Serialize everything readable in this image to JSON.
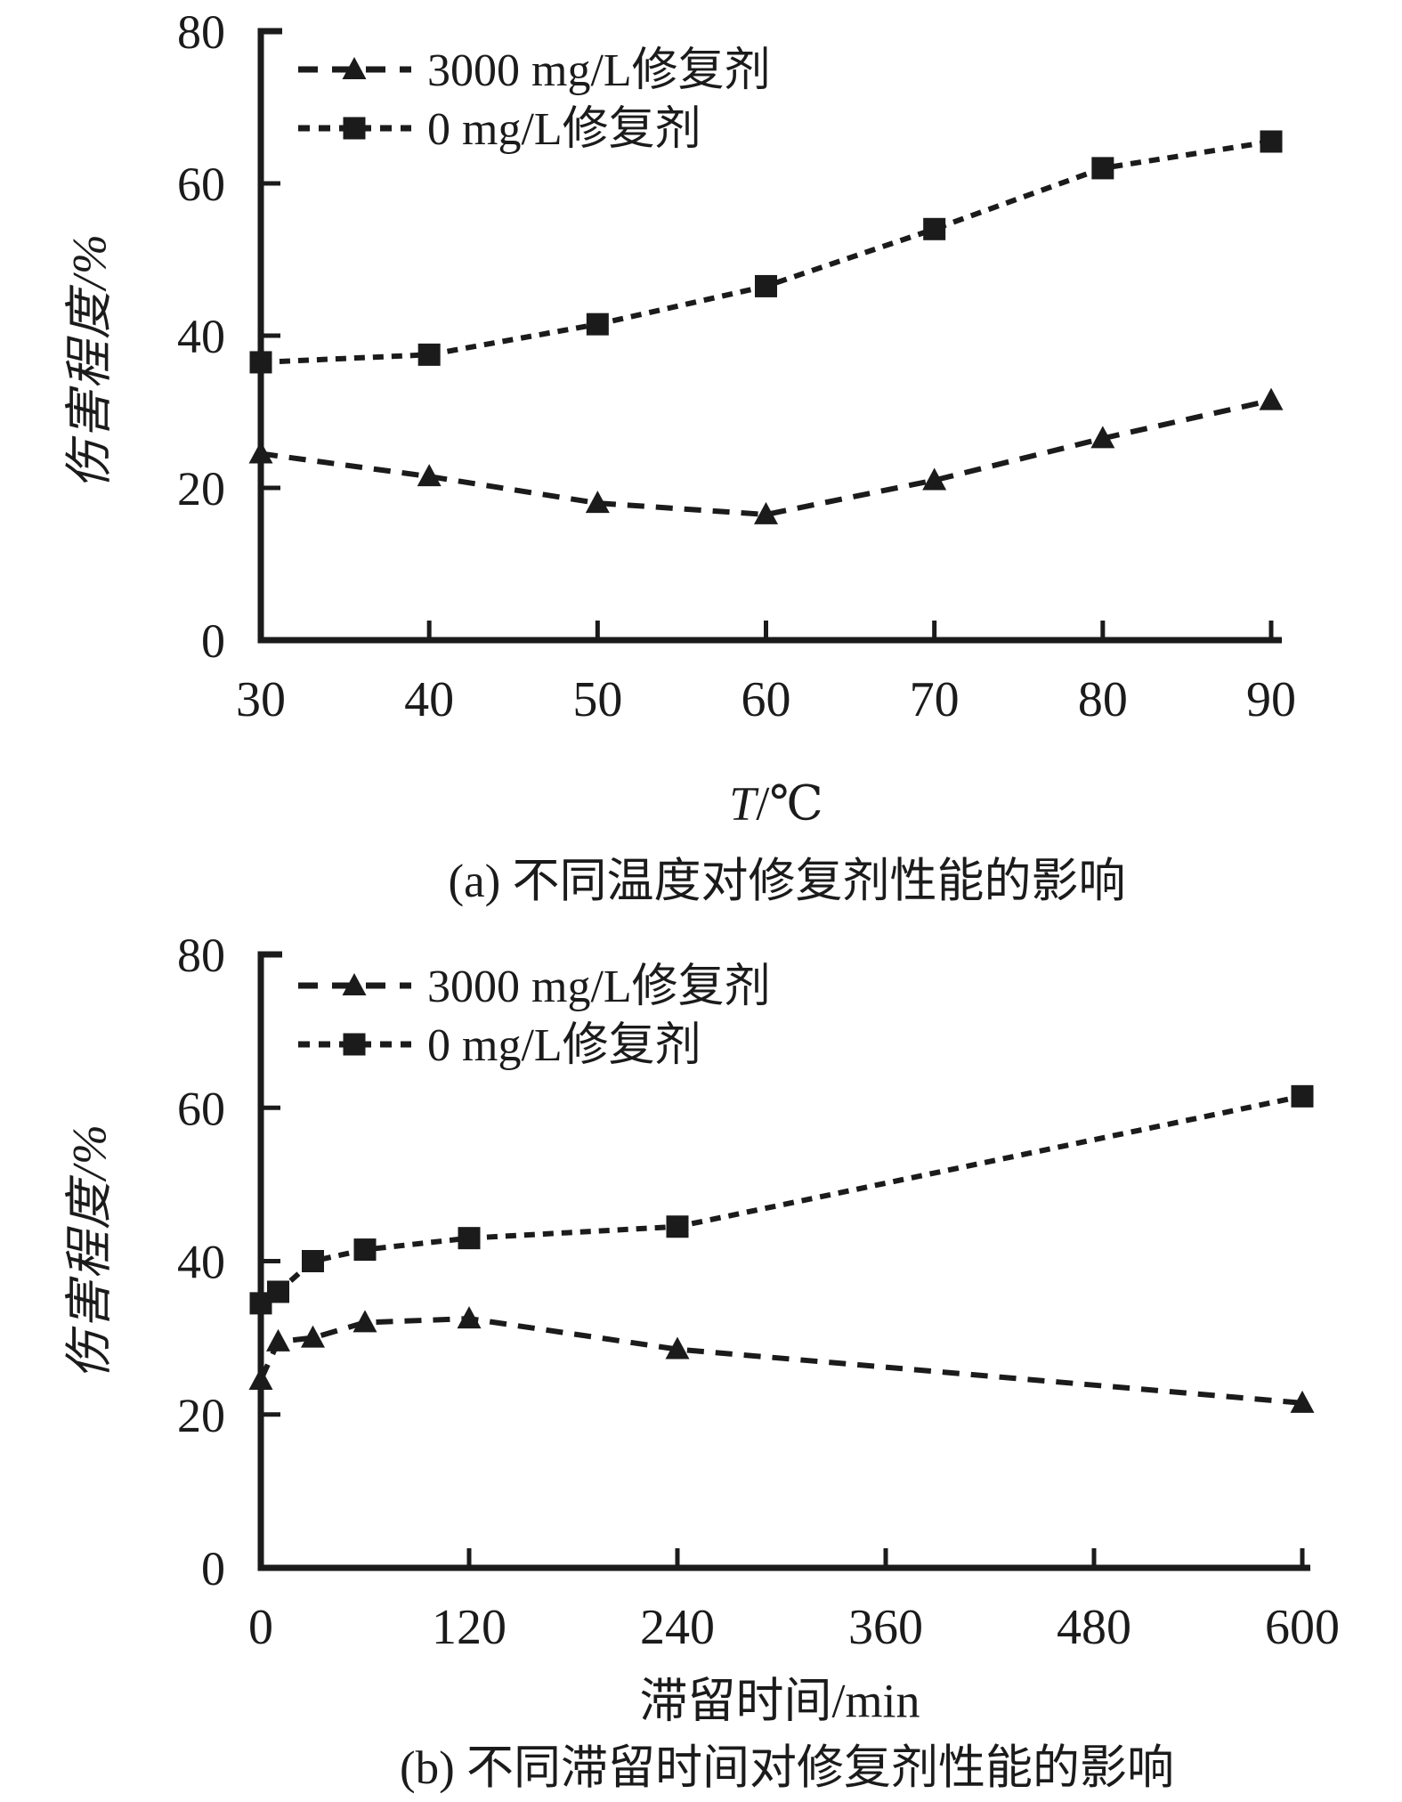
{
  "ink_color": "#1b1b1b",
  "background_color": "#ffffff",
  "chart_data": [
    {
      "type": "line",
      "title": "(a) 不同温度对修复剂性能的影响",
      "xlabel_prefix": "T",
      "xlabel_suffix": "/℃",
      "ylabel": "伤害程度/%",
      "x": [
        30,
        40,
        50,
        60,
        70,
        80,
        90
      ],
      "xticks": [
        30,
        40,
        50,
        60,
        70,
        80,
        90
      ],
      "yticks": [
        0,
        20,
        40,
        60,
        80
      ],
      "xlim": [
        30,
        90
      ],
      "ylim": [
        0,
        80
      ],
      "grid": false,
      "legend_position": "top-left-inside",
      "series": [
        {
          "name": "3000 mg/L修复剂",
          "marker": "triangle",
          "values": [
            24.5,
            21.5,
            18,
            16.5,
            21,
            26.5,
            31.5
          ]
        },
        {
          "name": "0 mg/L修复剂",
          "marker": "square",
          "values": [
            36.5,
            37.5,
            41.5,
            46.5,
            54,
            62,
            65.5
          ]
        }
      ]
    },
    {
      "type": "line",
      "title": "(b) 不同滞留时间对修复剂性能的影响",
      "xlabel_prefix": "",
      "xlabel_suffix": "滞留时间/min",
      "ylabel": "伤害程度/%",
      "x": [
        0,
        10,
        30,
        60,
        120,
        240,
        600
      ],
      "xticks": [
        0,
        120,
        240,
        360,
        480,
        600
      ],
      "yticks": [
        0,
        20,
        40,
        60,
        80
      ],
      "xlim": [
        0,
        600
      ],
      "ylim": [
        0,
        80
      ],
      "grid": false,
      "legend_position": "top-left-inside",
      "series": [
        {
          "name": "3000 mg/L修复剂",
          "marker": "triangle",
          "values": [
            24.5,
            29.5,
            30,
            32,
            32.5,
            28.5,
            21.5
          ]
        },
        {
          "name": "0 mg/L修复剂",
          "marker": "square",
          "values": [
            34.5,
            36,
            40,
            41.5,
            43,
            44.5,
            61.5
          ]
        }
      ]
    }
  ]
}
